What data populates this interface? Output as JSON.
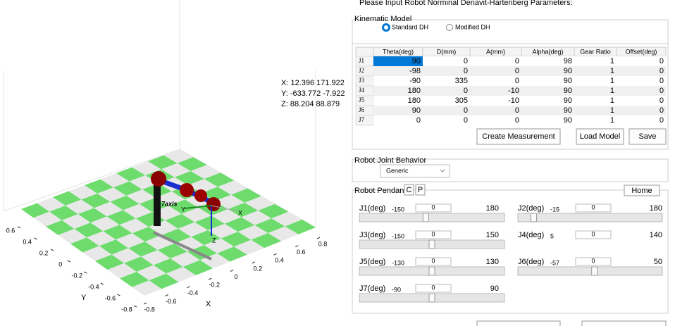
{
  "header": {
    "title": "Please Input Robot Norminal Denavit-Hartenberg Parameters:"
  },
  "plot": {
    "xticks": [
      -0.8,
      -0.6,
      -0.4,
      -0.2,
      0,
      0.2,
      0.4,
      0.6,
      0.8
    ],
    "yticks": [
      0.6,
      0.4,
      0.2,
      0,
      -0.2,
      -0.4,
      -0.6,
      -0.8
    ],
    "xlabel": "X",
    "ylabel": "Y",
    "robot_label": "7axis",
    "frame_labels": [
      "Y",
      "X",
      "Z"
    ],
    "readout": [
      "X: 12.396  171.922",
      "Y: -633.772  -7.922",
      "Z: 88.204  88.879"
    ]
  },
  "kinematic_model": {
    "title": "Kinematic Model",
    "options": [
      "Standard DH",
      "Modified DH"
    ],
    "selected": 0
  },
  "table": {
    "columns": [
      "Theta(deg)",
      "D(mm)",
      "A(mm)",
      "Alpha(deg)",
      "Gear Ratio",
      "Offset(deg)"
    ],
    "row_names": [
      "J1",
      "J2",
      "J3",
      "J4",
      "J5",
      "J6",
      "J7"
    ],
    "rows": [
      [
        90,
        0,
        0,
        98,
        1,
        0
      ],
      [
        -98,
        0,
        0,
        90,
        1,
        0
      ],
      [
        -90,
        335,
        0,
        90,
        1,
        0
      ],
      [
        180,
        0,
        -10,
        90,
        1,
        0
      ],
      [
        180,
        305,
        -10,
        90,
        1,
        0
      ],
      [
        90,
        0,
        0,
        90,
        1,
        0
      ],
      [
        0,
        0,
        0,
        90,
        1,
        0
      ]
    ]
  },
  "buttons": [
    "Create Measurement",
    "Load Model",
    "Save"
  ],
  "joint_behavior": {
    "title": "Robot Joint Behavior",
    "value": "Generic"
  },
  "pendant": {
    "title": "Robot Pendant",
    "buttons": [
      "C",
      "P",
      "Home"
    ],
    "joints": [
      {
        "label": "J1(deg)",
        "min": -150,
        "max": 180,
        "value": 0
      },
      {
        "label": "J2(deg)",
        "min": -15,
        "max": 180,
        "value": 0
      },
      {
        "label": "J3(deg)",
        "min": -150,
        "max": 150,
        "value": 0
      },
      {
        "label": "J4(deg)",
        "min": 5,
        "max": 140,
        "value": 0
      },
      {
        "label": "J5(deg)",
        "min": -130,
        "max": 130,
        "value": 0
      },
      {
        "label": "J6(deg)",
        "min": -57,
        "max": 50,
        "value": 0
      },
      {
        "label": "J7(deg)",
        "min": -90,
        "max": 90,
        "value": 0
      }
    ]
  }
}
